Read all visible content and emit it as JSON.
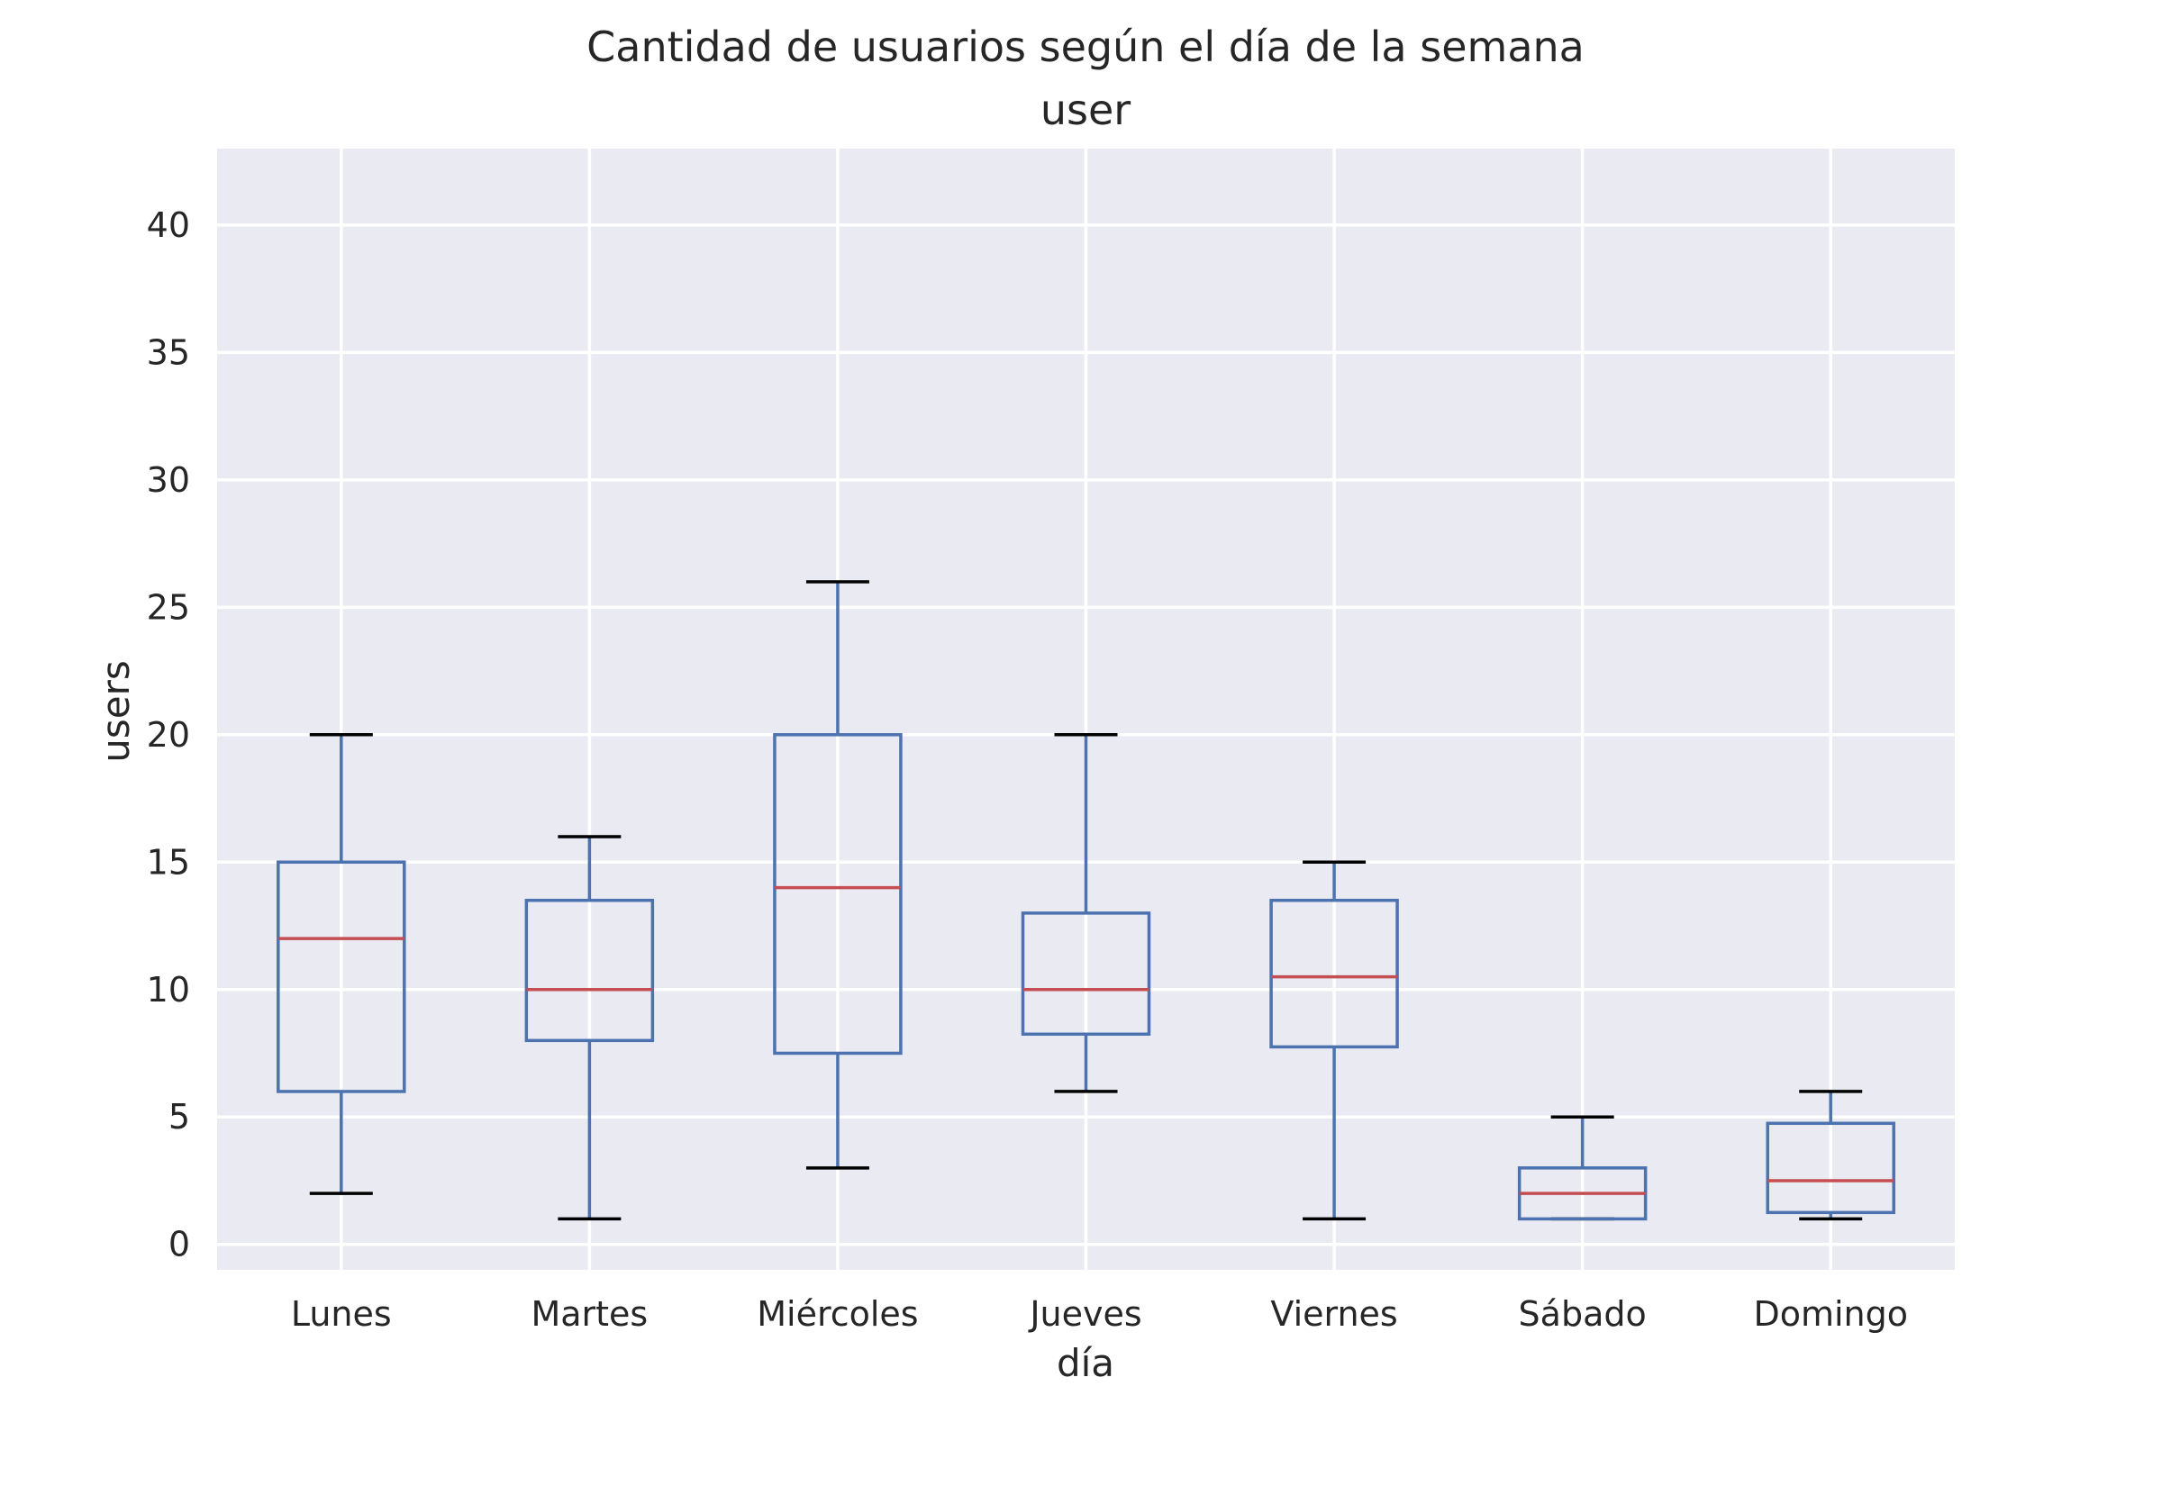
{
  "chart_data": {
    "type": "box",
    "title": "Cantidad de usuarios según el día de la semana",
    "subtitle": "user",
    "xlabel": "día",
    "ylabel": "users",
    "ylim": [
      -1,
      43
    ],
    "yticks": [
      0,
      5,
      10,
      15,
      20,
      25,
      30,
      35,
      40
    ],
    "categories": [
      "Lunes",
      "Martes",
      "Miércoles",
      "Jueves",
      "Viernes",
      "Sábado",
      "Domingo"
    ],
    "boxes": [
      {
        "category": "Lunes",
        "whisker_low": 2,
        "q1": 6,
        "median": 12,
        "q3": 15,
        "whisker_high": 20
      },
      {
        "category": "Martes",
        "whisker_low": 1,
        "q1": 8,
        "median": 10,
        "q3": 13.5,
        "whisker_high": 16
      },
      {
        "category": "Miércoles",
        "whisker_low": 3,
        "q1": 7.5,
        "median": 14,
        "q3": 20,
        "whisker_high": 26
      },
      {
        "category": "Jueves",
        "whisker_low": 6,
        "q1": 8.25,
        "median": 10,
        "q3": 13,
        "whisker_high": 20
      },
      {
        "category": "Viernes",
        "whisker_low": 1,
        "q1": 7.75,
        "median": 10.5,
        "q3": 13.5,
        "whisker_high": 15
      },
      {
        "category": "Sábado",
        "whisker_low": 1,
        "q1": 1,
        "median": 2,
        "q3": 3,
        "whisker_high": 5
      },
      {
        "category": "Domingo",
        "whisker_low": 1,
        "q1": 1.25,
        "median": 2.5,
        "q3": 4.75,
        "whisker_high": 6
      }
    ],
    "grid": true,
    "colors": {
      "plot_background": "#eaeaf2",
      "grid": "#ffffff",
      "box": "#4c72b0",
      "median": "#c44e52",
      "caps": "#000000",
      "text": "#262626"
    }
  }
}
